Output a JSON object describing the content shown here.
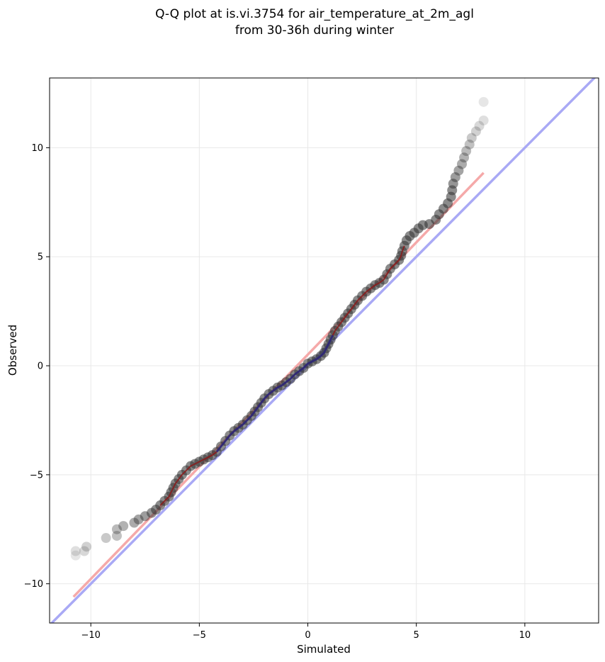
{
  "chart_data": {
    "type": "scatter",
    "title_lines": [
      "Q-Q plot at is.vi.3754 for air_temperature_at_2m_agl",
      "from 30-36h during winter"
    ],
    "xlabel": "Simulated",
    "ylabel": "Observed",
    "xlim": [
      -11.9,
      13.4
    ],
    "ylim": [
      -11.8,
      13.2
    ],
    "xticks": [
      -10,
      -5,
      0,
      5,
      10
    ],
    "yticks": [
      -10,
      -5,
      0,
      5,
      10
    ],
    "xtick_labels": [
      "−10",
      "−5",
      "0",
      "5",
      "10"
    ],
    "ytick_labels": [
      "−10",
      "−5",
      "0",
      "5",
      "10"
    ],
    "grid": true,
    "reference_line": {
      "name": "1:1",
      "color": "#a9a9f5",
      "x": [
        -11.9,
        13.4
      ],
      "y": [
        -11.9,
        13.4
      ]
    },
    "fit_line": {
      "color": "#f5a9a9",
      "x": [
        -10.8,
        8.1
      ],
      "y": [
        -10.6,
        8.85
      ]
    },
    "quantile_points": {
      "color": "#333333",
      "points": [
        [
          -10.7,
          -8.7
        ],
        [
          -10.7,
          -8.5
        ],
        [
          -10.3,
          -8.5
        ],
        [
          -10.2,
          -8.3
        ],
        [
          -9.3,
          -7.9
        ],
        [
          -8.8,
          -7.8
        ],
        [
          -8.8,
          -7.5
        ],
        [
          -8.5,
          -7.35
        ],
        [
          -8.0,
          -7.2
        ],
        [
          -7.8,
          -7.05
        ],
        [
          -7.5,
          -6.9
        ],
        [
          -7.2,
          -6.75
        ],
        [
          -7.0,
          -6.6
        ],
        [
          -6.8,
          -6.4
        ],
        [
          -6.6,
          -6.2
        ],
        [
          -6.4,
          -6.0
        ],
        [
          -6.3,
          -5.8
        ],
        [
          -6.2,
          -5.6
        ],
        [
          -6.1,
          -5.4
        ],
        [
          -5.95,
          -5.2
        ],
        [
          -5.8,
          -5.0
        ],
        [
          -5.6,
          -4.8
        ],
        [
          -5.4,
          -4.6
        ],
        [
          -5.2,
          -4.5
        ],
        [
          -5.0,
          -4.4
        ],
        [
          -4.8,
          -4.3
        ],
        [
          -4.6,
          -4.2
        ],
        [
          -4.4,
          -4.1
        ],
        [
          -4.2,
          -3.95
        ],
        [
          -4.0,
          -3.7
        ],
        [
          -3.8,
          -3.45
        ],
        [
          -3.6,
          -3.2
        ],
        [
          -3.4,
          -3.0
        ],
        [
          -3.2,
          -2.85
        ],
        [
          -3.0,
          -2.7
        ],
        [
          -2.8,
          -2.5
        ],
        [
          -2.6,
          -2.3
        ],
        [
          -2.45,
          -2.1
        ],
        [
          -2.3,
          -1.9
        ],
        [
          -2.15,
          -1.7
        ],
        [
          -2.0,
          -1.5
        ],
        [
          -1.8,
          -1.3
        ],
        [
          -1.6,
          -1.15
        ],
        [
          -1.4,
          -1.0
        ],
        [
          -1.2,
          -0.9
        ],
        [
          -1.0,
          -0.75
        ],
        [
          -0.8,
          -0.6
        ],
        [
          -0.6,
          -0.4
        ],
        [
          -0.4,
          -0.25
        ],
        [
          -0.2,
          -0.1
        ],
        [
          0.0,
          0.1
        ],
        [
          0.2,
          0.2
        ],
        [
          0.4,
          0.3
        ],
        [
          0.6,
          0.45
        ],
        [
          0.75,
          0.6
        ],
        [
          0.85,
          0.8
        ],
        [
          0.95,
          1.0
        ],
        [
          1.05,
          1.2
        ],
        [
          1.15,
          1.4
        ],
        [
          1.25,
          1.6
        ],
        [
          1.4,
          1.8
        ],
        [
          1.55,
          2.0
        ],
        [
          1.7,
          2.2
        ],
        [
          1.85,
          2.4
        ],
        [
          2.0,
          2.6
        ],
        [
          2.15,
          2.8
        ],
        [
          2.3,
          3.0
        ],
        [
          2.5,
          3.2
        ],
        [
          2.7,
          3.4
        ],
        [
          2.9,
          3.55
        ],
        [
          3.1,
          3.7
        ],
        [
          3.3,
          3.8
        ],
        [
          3.5,
          3.95
        ],
        [
          3.65,
          4.2
        ],
        [
          3.8,
          4.45
        ],
        [
          4.0,
          4.65
        ],
        [
          4.2,
          4.85
        ],
        [
          4.3,
          5.05
        ],
        [
          4.35,
          5.25
        ],
        [
          4.45,
          5.5
        ],
        [
          4.55,
          5.75
        ],
        [
          4.7,
          5.95
        ],
        [
          4.9,
          6.1
        ],
        [
          5.1,
          6.3
        ],
        [
          5.3,
          6.45
        ],
        [
          5.6,
          6.5
        ],
        [
          5.9,
          6.7
        ],
        [
          6.05,
          6.95
        ],
        [
          6.25,
          7.2
        ],
        [
          6.45,
          7.45
        ],
        [
          6.6,
          7.75
        ],
        [
          6.65,
          8.05
        ],
        [
          6.7,
          8.35
        ],
        [
          6.8,
          8.65
        ],
        [
          6.95,
          8.95
        ],
        [
          7.1,
          9.25
        ],
        [
          7.2,
          9.55
        ],
        [
          7.3,
          9.85
        ],
        [
          7.45,
          10.15
        ],
        [
          7.55,
          10.45
        ],
        [
          7.75,
          10.75
        ],
        [
          7.9,
          11.0
        ],
        [
          8.1,
          11.25
        ],
        [
          8.1,
          12.1
        ]
      ]
    }
  }
}
